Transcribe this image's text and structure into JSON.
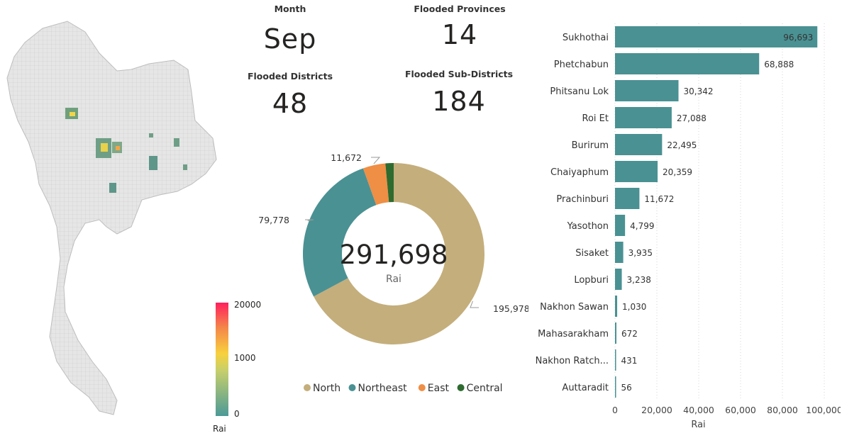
{
  "kpis": {
    "month": {
      "label": "Month",
      "value": "Sep"
    },
    "provinces": {
      "label": "Flooded Provinces",
      "value": "14"
    },
    "districts": {
      "label": "Flooded Districts",
      "value": "48"
    },
    "subdistricts": {
      "label": "Flooded Sub-Districts",
      "value": "184"
    }
  },
  "map": {
    "legend_title": "Rai",
    "legend_ticks": [
      "20000",
      "1000",
      "0"
    ],
    "scale_colors": [
      "#ff1f5e",
      "#f7d13d",
      "#4b9a97"
    ]
  },
  "chart_data": [
    {
      "type": "donut",
      "center_value": "291,698",
      "center_label": "Rai",
      "categories": [
        "North",
        "Northeast",
        "East",
        "Central"
      ],
      "values": [
        195978,
        79778,
        11672,
        4270
      ],
      "value_labels": [
        "195,978",
        "79,778",
        "11,672",
        ""
      ],
      "colors": [
        "#c4ae7b",
        "#4a9193",
        "#ef8e45",
        "#2e6b2f"
      ],
      "legend": "bottom"
    },
    {
      "type": "bar",
      "orientation": "horizontal",
      "categories": [
        "Sukhothai",
        "Phetchabun",
        "Phitsanu Lok",
        "Roi Et",
        "Burirum",
        "Chaiyaphum",
        "Prachinburi",
        "Yasothon",
        "Sisaket",
        "Lopburi",
        "Nakhon Sawan",
        "Mahasarakham",
        "Nakhon Ratch...",
        "Auttaradit"
      ],
      "values": [
        96693,
        68888,
        30342,
        27088,
        22495,
        20359,
        11672,
        4799,
        3935,
        3238,
        1030,
        672,
        431,
        56
      ],
      "value_labels": [
        "96,693",
        "68,888",
        "30,342",
        "27,088",
        "22,495",
        "20,359",
        "11,672",
        "4,799",
        "3,935",
        "3,238",
        "1,030",
        "672",
        "431",
        "56"
      ],
      "xlabel": "Rai",
      "xlim": [
        0,
        100000
      ],
      "x_ticks": [
        "0",
        "20,000",
        "40,000",
        "60,000",
        "80,000",
        "100,000"
      ],
      "color": "#4a9193",
      "grid": "vertical dotted"
    }
  ]
}
